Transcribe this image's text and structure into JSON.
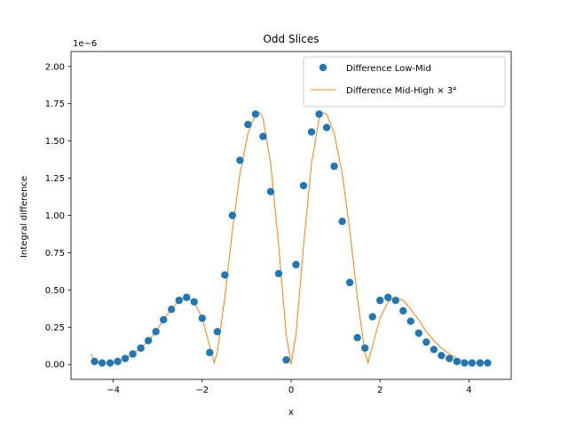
{
  "chart_data": {
    "type": "scatter",
    "title": "Odd Slices",
    "xlabel": "x",
    "ylabel": "Integral difference",
    "offset_text": "1e−6",
    "xlim": [
      -4.95,
      4.95
    ],
    "ylim": [
      -0.1,
      2.1
    ],
    "y_unit_scale": 1e-06,
    "x_ticks": [
      -4,
      -2,
      0,
      2,
      4
    ],
    "x_tick_labels": [
      "−4",
      "−2",
      "0",
      "2",
      "4"
    ],
    "y_ticks": [
      0.0,
      0.25,
      0.5,
      0.75,
      1.0,
      1.25,
      1.5,
      1.75,
      2.0
    ],
    "y_tick_labels": [
      "0.00",
      "0.25",
      "0.50",
      "0.75",
      "1.00",
      "1.25",
      "1.50",
      "1.75",
      "2.00"
    ],
    "grid": false,
    "legend_position": "upper right",
    "colors": {
      "markers": "#1f77b4",
      "line": "#ff7f0e"
    },
    "series": [
      {
        "name": "Difference Low-Mid",
        "kind": "markers",
        "x": [
          -4.42,
          -4.25,
          -4.07,
          -3.9,
          -3.73,
          -3.56,
          -3.38,
          -3.21,
          -3.04,
          -2.87,
          -2.69,
          -2.52,
          -2.35,
          -2.18,
          -2.0,
          -1.83,
          -1.66,
          -1.49,
          -1.32,
          -1.15,
          -0.97,
          -0.8,
          -0.63,
          -0.46,
          -0.28,
          -0.11,
          0.11,
          0.28,
          0.46,
          0.63,
          0.8,
          0.97,
          1.15,
          1.32,
          1.49,
          1.66,
          1.83,
          2.0,
          2.18,
          2.35,
          2.52,
          2.69,
          2.87,
          3.04,
          3.21,
          3.38,
          3.56,
          3.73,
          3.9,
          4.07,
          4.25,
          4.42
        ],
        "y": [
          0.02,
          0.01,
          0.01,
          0.02,
          0.04,
          0.07,
          0.11,
          0.16,
          0.22,
          0.3,
          0.37,
          0.43,
          0.45,
          0.42,
          0.31,
          0.08,
          0.22,
          0.6,
          1.0,
          1.37,
          1.61,
          1.68,
          1.53,
          1.16,
          0.61,
          0.03,
          0.67,
          1.2,
          1.56,
          1.68,
          1.59,
          1.33,
          0.96,
          0.55,
          0.18,
          0.11,
          0.32,
          0.43,
          0.45,
          0.43,
          0.36,
          0.29,
          0.21,
          0.15,
          0.1,
          0.06,
          0.04,
          0.02,
          0.01,
          0.01,
          0.01,
          0.01
        ]
      },
      {
        "name": "Difference Mid-High × 3⁴",
        "kind": "line",
        "x": [
          -4.5,
          -4.42,
          -4.25,
          -4.07,
          -3.9,
          -3.73,
          -3.56,
          -3.38,
          -3.21,
          -3.04,
          -2.87,
          -2.69,
          -2.52,
          -2.35,
          -2.18,
          -2.0,
          -1.9,
          -1.8,
          -1.73,
          -1.66,
          -1.49,
          -1.32,
          -1.15,
          -0.97,
          -0.8,
          -0.7,
          -0.63,
          -0.46,
          -0.28,
          -0.11,
          0.0,
          0.11,
          0.28,
          0.46,
          0.63,
          0.7,
          0.8,
          0.97,
          1.15,
          1.32,
          1.49,
          1.66,
          1.73,
          1.8,
          1.9,
          2.0,
          2.18,
          2.35,
          2.52,
          2.69,
          2.87,
          3.04,
          3.21,
          3.38,
          3.56,
          3.73,
          3.9,
          4.07,
          4.25,
          4.42
        ],
        "y": [
          0.07,
          0.02,
          0.01,
          0.01,
          0.02,
          0.04,
          0.07,
          0.11,
          0.16,
          0.22,
          0.3,
          0.37,
          0.43,
          0.45,
          0.42,
          0.31,
          0.2,
          0.09,
          0.01,
          0.08,
          0.45,
          0.9,
          1.28,
          1.55,
          1.68,
          1.69,
          1.65,
          1.35,
          0.8,
          0.2,
          0.0,
          0.2,
          0.8,
          1.35,
          1.65,
          1.69,
          1.68,
          1.55,
          1.28,
          0.9,
          0.45,
          0.08,
          0.01,
          0.09,
          0.2,
          0.31,
          0.42,
          0.45,
          0.43,
          0.37,
          0.3,
          0.22,
          0.16,
          0.11,
          0.07,
          0.04,
          0.02,
          0.01,
          0.01,
          0.02
        ]
      }
    ]
  }
}
